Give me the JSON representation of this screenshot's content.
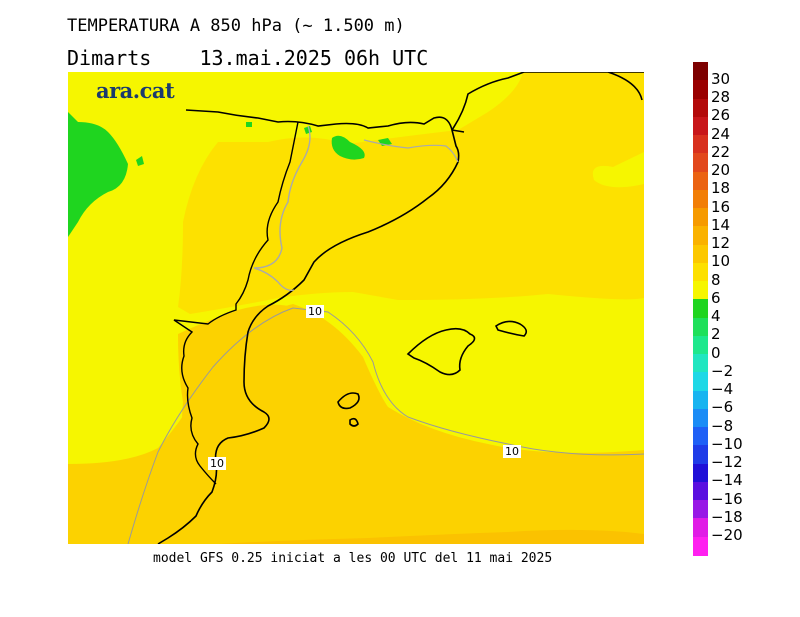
{
  "header": {
    "title": "TEMPERATURA A 850 hPa (~ 1.500 m)",
    "day": "Dimarts",
    "datetime": "13.mai.2025 06h UTC"
  },
  "branding": {
    "logo_text": "ara.cat"
  },
  "map": {
    "contour_labels": [
      "10",
      "10",
      "10"
    ],
    "fill_colors": {
      "green": "#1fd51f",
      "yellow": "#f6f600",
      "light_orange": "#fde100",
      "orange": "#fcd200",
      "deep_orange": "#fbc200"
    }
  },
  "footer": {
    "text": "model GFS 0.25 iniciat a les 00 UTC del 11 mai 2025"
  },
  "colorbar": {
    "labels": [
      "30",
      "28",
      "26",
      "24",
      "22",
      "20",
      "18",
      "16",
      "14",
      "12",
      "10",
      "8",
      "6",
      "4",
      "2",
      "0",
      "−2",
      "−4",
      "−6",
      "−8",
      "−10",
      "−12",
      "−14",
      "−16",
      "−18",
      "−20"
    ],
    "colors": [
      "#7d0000",
      "#9a0000",
      "#b30a0a",
      "#c8161a",
      "#d8301e",
      "#e2481c",
      "#eb6312",
      "#f27e06",
      "#f69a00",
      "#fab200",
      "#fcc800",
      "#fde000",
      "#f6f600",
      "#1fd51f",
      "#1fe05a",
      "#1ee88c",
      "#20e6c0",
      "#1ed8e6",
      "#18b4f0",
      "#1b8cf6",
      "#1f60f6",
      "#1f3ce8",
      "#2010d8",
      "#5a10e0",
      "#9818e6",
      "#e01ce6",
      "#ff20f0"
    ]
  }
}
